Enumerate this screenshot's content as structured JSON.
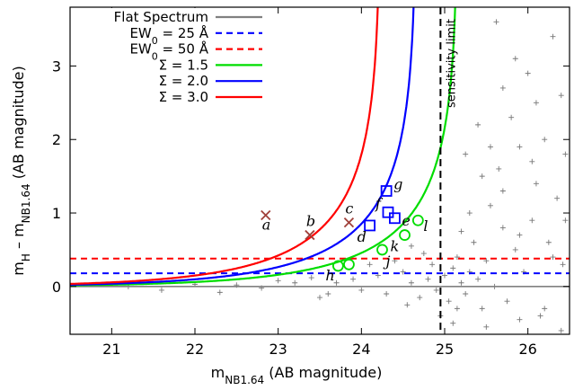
{
  "chart_data": {
    "type": "scatter",
    "xlabel_main": "m",
    "xlabel_sub": "NB1.64",
    "xlabel_rest": " (AB magnitude)",
    "ylabel_m1": "m",
    "ylabel_sub1": "H",
    "ylabel_mid": " – m",
    "ylabel_sub2": "NB1.64",
    "ylabel_rest": " (AB magnitude)",
    "xlim": [
      20.5,
      26.5
    ],
    "ylim": [
      -0.65,
      3.8
    ],
    "x_ticks": [
      21,
      22,
      23,
      24,
      25,
      26
    ],
    "x_tick_labels": [
      "21",
      "22",
      "23",
      "24",
      "25",
      "26"
    ],
    "y_ticks": [
      0,
      1,
      2,
      3
    ],
    "y_tick_labels": [
      "0",
      "1",
      "2",
      "3"
    ],
    "grid": false,
    "legend_position": "top-left",
    "legend": [
      {
        "label": "Flat Spectrum",
        "color": "#808080",
        "dash": "solid"
      },
      {
        "label": "EW",
        "sub": "0",
        "suffix": " = 25 Å",
        "color": "#0000ff",
        "dash": "dashed"
      },
      {
        "label": "EW",
        "sub": "0",
        "suffix": " = 50 Å",
        "color": "#ff0000",
        "dash": "dashed"
      },
      {
        "label": "Σ = 1.5",
        "color": "#00dd00",
        "dash": "solid"
      },
      {
        "label": "Σ = 2.0",
        "color": "#0000ff",
        "dash": "solid"
      },
      {
        "label": "Σ = 3.0",
        "color": "#ff0000",
        "dash": "solid"
      }
    ],
    "flat_spectrum_y": 0,
    "ew25_y": 0.18,
    "ew50_y": 0.38,
    "sigma_curves": [
      {
        "sigma": 1.5,
        "color": "#00dd00",
        "limit": 25.16
      },
      {
        "sigma": 2.0,
        "color": "#0000ff",
        "limit": 24.66
      },
      {
        "sigma": 3.0,
        "color": "#ff0000",
        "limit": 24.23
      }
    ],
    "sensitivity_limit_x": 24.95,
    "sensitivity_label": "sensitivity limit",
    "x_marker_points": [
      {
        "x": 22.85,
        "y": 0.97,
        "label": "a"
      },
      {
        "x": 23.38,
        "y": 0.7,
        "label": "b"
      },
      {
        "x": 23.85,
        "y": 0.87,
        "label": "c"
      }
    ],
    "square_points": [
      {
        "x": 24.1,
        "y": 0.83,
        "label": "d"
      },
      {
        "x": 24.32,
        "y": 1.01,
        "label": "f"
      },
      {
        "x": 24.3,
        "y": 1.3,
        "label": "g"
      },
      {
        "x": 24.4,
        "y": 0.93,
        "label": "e"
      }
    ],
    "circle_points": [
      {
        "x": 23.72,
        "y": 0.28,
        "label": "h"
      },
      {
        "x": 23.85,
        "y": 0.3,
        "label": ""
      },
      {
        "x": 24.25,
        "y": 0.5,
        "label": "j"
      },
      {
        "x": 24.52,
        "y": 0.7,
        "label": "k"
      },
      {
        "x": 24.68,
        "y": 0.9,
        "label": "l"
      }
    ],
    "gray_points": [
      [
        23.2,
        0.05
      ],
      [
        23.6,
        -0.1
      ],
      [
        23.9,
        0.1
      ],
      [
        24.0,
        -0.05
      ],
      [
        24.2,
        0.15
      ],
      [
        24.3,
        -0.1
      ],
      [
        24.5,
        0.2
      ],
      [
        24.6,
        0.05
      ],
      [
        24.7,
        -0.15
      ],
      [
        24.8,
        0.1
      ],
      [
        24.85,
        0.3
      ],
      [
        24.9,
        -0.05
      ],
      [
        25.0,
        0.15
      ],
      [
        25.05,
        -0.2
      ],
      [
        25.1,
        0.25
      ],
      [
        25.15,
        0.4
      ],
      [
        25.2,
        0.05
      ],
      [
        25.25,
        -0.1
      ],
      [
        25.3,
        0.2
      ],
      [
        25.35,
        0.6
      ],
      [
        25.4,
        0.1
      ],
      [
        25.45,
        -0.3
      ],
      [
        25.5,
        0.35
      ],
      [
        25.55,
        1.1
      ],
      [
        25.6,
        0.0
      ],
      [
        25.65,
        1.6
      ],
      [
        25.7,
        0.8
      ],
      [
        25.75,
        -0.2
      ],
      [
        25.8,
        2.3
      ],
      [
        25.85,
        0.5
      ],
      [
        25.9,
        1.9
      ],
      [
        25.95,
        0.2
      ],
      [
        26.0,
        2.9
      ],
      [
        26.05,
        0.9
      ],
      [
        26.1,
        1.4
      ],
      [
        26.15,
        -0.4
      ],
      [
        26.2,
        2.0
      ],
      [
        26.25,
        0.6
      ],
      [
        26.3,
        3.4
      ],
      [
        26.35,
        1.2
      ],
      [
        26.4,
        2.6
      ],
      [
        26.42,
        0.3
      ],
      [
        26.45,
        1.8
      ],
      [
        25.62,
        3.6
      ],
      [
        25.85,
        3.1
      ],
      [
        26.1,
        2.5
      ],
      [
        25.7,
        2.7
      ],
      [
        25.45,
        1.5
      ],
      [
        25.3,
        1.0
      ],
      [
        25.2,
        0.75
      ],
      [
        22.5,
        0.02
      ],
      [
        22.8,
        -0.02
      ],
      [
        23.0,
        0.08
      ],
      [
        23.4,
        0.12
      ],
      [
        23.5,
        -0.15
      ],
      [
        23.7,
        0.05
      ],
      [
        24.1,
        0.3
      ],
      [
        24.4,
        0.35
      ],
      [
        24.55,
        -0.25
      ],
      [
        24.75,
        0.45
      ],
      [
        21.2,
        0.0
      ],
      [
        21.6,
        -0.05
      ],
      [
        22.0,
        0.03
      ],
      [
        22.3,
        -0.08
      ],
      [
        24.95,
        -0.4
      ],
      [
        25.1,
        -0.5
      ],
      [
        25.5,
        -0.55
      ],
      [
        25.9,
        -0.45
      ],
      [
        26.2,
        -0.3
      ],
      [
        26.4,
        -0.6
      ],
      [
        25.25,
        1.8
      ],
      [
        25.4,
        2.2
      ],
      [
        25.55,
        1.9
      ],
      [
        25.7,
        1.3
      ],
      [
        25.9,
        0.7
      ],
      [
        26.05,
        1.7
      ],
      [
        26.3,
        0.4
      ],
      [
        26.45,
        0.9
      ],
      [
        25.15,
        -0.3
      ],
      [
        24.6,
        0.55
      ]
    ]
  }
}
